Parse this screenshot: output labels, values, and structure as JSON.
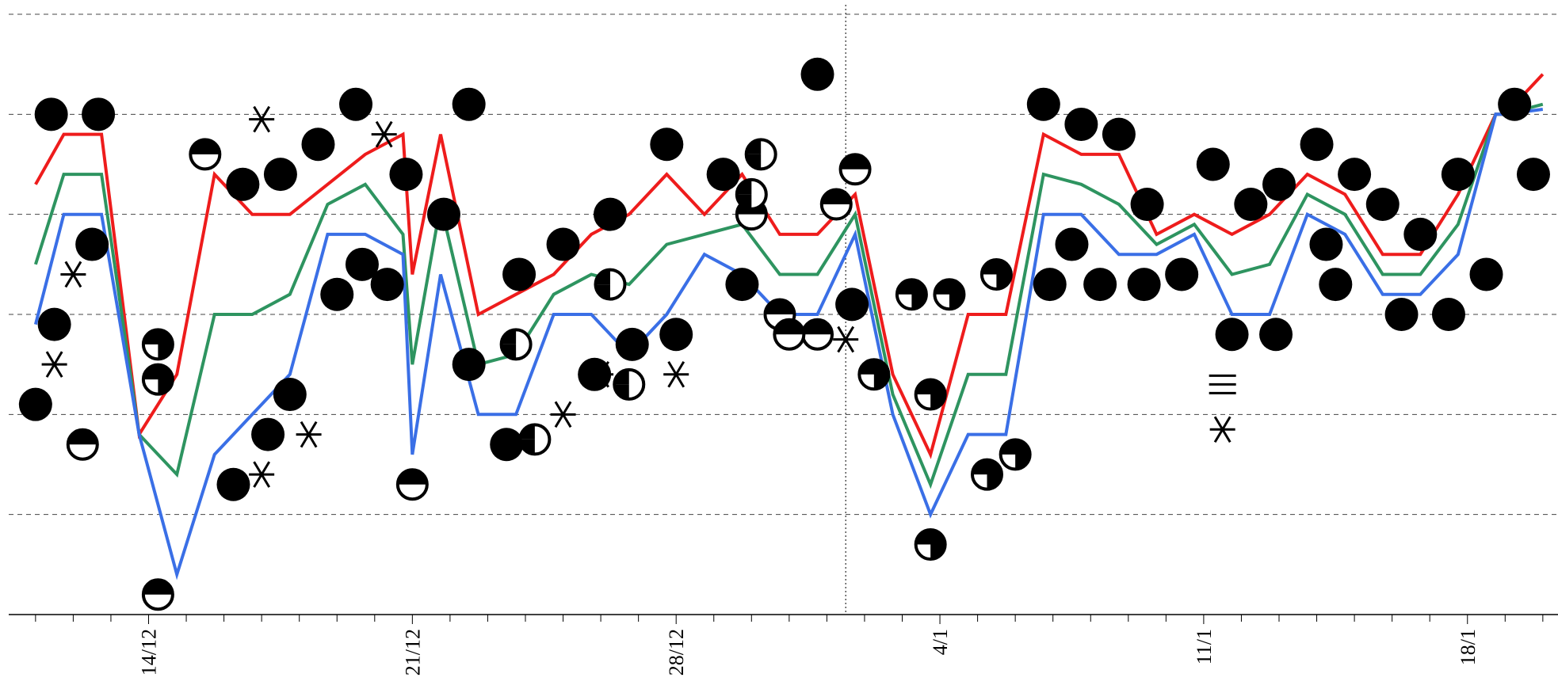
{
  "chart_data": {
    "type": "line",
    "title": "",
    "xlabel": "",
    "ylabel": "",
    "x_start": "2011-12-11",
    "x_end": "2012-01-20",
    "ylim": [
      -6,
      0
    ],
    "grid": true,
    "x_tick_labels": [
      {
        "date": "2011-12-14",
        "label": "14/12"
      },
      {
        "date": "2011-12-21",
        "label": "21/12"
      },
      {
        "date": "2011-12-28",
        "label": "28/12"
      },
      {
        "date": "2012-01-04",
        "label": "4/1"
      },
      {
        "date": "2012-01-11",
        "label": "11/1"
      },
      {
        "date": "2012-01-18",
        "label": "18/1"
      }
    ],
    "vline_date": "2012-01-01T12:00",
    "series": [
      {
        "color": "#ee1c1c",
        "points": [
          [
            "2011-12-11",
            -1.7
          ],
          [
            "2011-12-11T18:00",
            -1.2
          ],
          [
            "2011-12-12T18:00",
            -1.2
          ],
          [
            "2011-12-13T18:00",
            -4.2
          ],
          [
            "2011-12-14T18:00",
            -3.6
          ],
          [
            "2011-12-15T18:00",
            -1.6
          ],
          [
            "2011-12-16T18:00",
            -2.0
          ],
          [
            "2011-12-17T18:00",
            -2.0
          ],
          [
            "2011-12-18T18:00",
            -1.7
          ],
          [
            "2011-12-19T18:00",
            -1.4
          ],
          [
            "2011-12-20T18:00",
            -1.2
          ],
          [
            "2011-12-21",
            -2.6
          ],
          [
            "2011-12-21T18:00",
            -1.2
          ],
          [
            "2011-12-22T18:00",
            -3.0
          ],
          [
            "2011-12-23T18:00",
            -2.8
          ],
          [
            "2011-12-24T18:00",
            -2.6
          ],
          [
            "2011-12-25T18:00",
            -2.2
          ],
          [
            "2011-12-26T18:00",
            -2.0
          ],
          [
            "2011-12-27T18:00",
            -1.6
          ],
          [
            "2011-12-28T18:00",
            -2.0
          ],
          [
            "2011-12-29T18:00",
            -1.6
          ],
          [
            "2011-12-30T18:00",
            -2.2
          ],
          [
            "2011-12-31T18:00",
            -2.2
          ],
          [
            "2012-01-01T18:00",
            -1.8
          ],
          [
            "2012-01-02T18:00",
            -3.6
          ],
          [
            "2012-01-03T18:00",
            -4.4
          ],
          [
            "2012-01-04T18:00",
            -3.0
          ],
          [
            "2012-01-05T18:00",
            -3.0
          ],
          [
            "2012-01-06T18:00",
            -1.2
          ],
          [
            "2012-01-07T18:00",
            -1.4
          ],
          [
            "2012-01-08T18:00",
            -1.4
          ],
          [
            "2012-01-09T18:00",
            -2.2
          ],
          [
            "2012-01-10T18:00",
            -2.0
          ],
          [
            "2012-01-11T18:00",
            -2.2
          ],
          [
            "2012-01-12T18:00",
            -2.0
          ],
          [
            "2012-01-13T18:00",
            -1.6
          ],
          [
            "2012-01-14T18:00",
            -1.8
          ],
          [
            "2012-01-15T18:00",
            -2.4
          ],
          [
            "2012-01-16T18:00",
            -2.4
          ],
          [
            "2012-01-17T18:00",
            -1.8
          ],
          [
            "2012-01-18T18:00",
            -1.0
          ],
          [
            "2012-01-19",
            -1.0
          ],
          [
            "2012-01-20",
            -0.6
          ]
        ]
      },
      {
        "color": "#2e9460",
        "points": [
          [
            "2011-12-11",
            -2.5
          ],
          [
            "2011-12-11T18:00",
            -1.6
          ],
          [
            "2011-12-12T18:00",
            -1.6
          ],
          [
            "2011-12-13T18:00",
            -4.2
          ],
          [
            "2011-12-14T18:00",
            -4.6
          ],
          [
            "2011-12-15T18:00",
            -3.0
          ],
          [
            "2011-12-16T18:00",
            -3.0
          ],
          [
            "2011-12-17T18:00",
            -2.8
          ],
          [
            "2011-12-18T18:00",
            -1.9
          ],
          [
            "2011-12-19T18:00",
            -1.7
          ],
          [
            "2011-12-20T18:00",
            -2.2
          ],
          [
            "2011-12-21",
            -3.5
          ],
          [
            "2011-12-21T18:00",
            -1.9
          ],
          [
            "2011-12-22T18:00",
            -3.5
          ],
          [
            "2011-12-23T18:00",
            -3.4
          ],
          [
            "2011-12-24T18:00",
            -2.8
          ],
          [
            "2011-12-25T18:00",
            -2.6
          ],
          [
            "2011-12-26T18:00",
            -2.7
          ],
          [
            "2011-12-27T18:00",
            -2.3
          ],
          [
            "2011-12-28T18:00",
            -2.2
          ],
          [
            "2011-12-29T18:00",
            -2.1
          ],
          [
            "2011-12-30T18:00",
            -2.6
          ],
          [
            "2011-12-31T18:00",
            -2.6
          ],
          [
            "2012-01-01T18:00",
            -2.0
          ],
          [
            "2012-01-02T18:00",
            -3.8
          ],
          [
            "2012-01-03T18:00",
            -4.7
          ],
          [
            "2012-01-04T18:00",
            -3.6
          ],
          [
            "2012-01-05T18:00",
            -3.6
          ],
          [
            "2012-01-06T18:00",
            -1.6
          ],
          [
            "2012-01-07T18:00",
            -1.7
          ],
          [
            "2012-01-08T18:00",
            -1.9
          ],
          [
            "2012-01-09T18:00",
            -2.3
          ],
          [
            "2012-01-10T18:00",
            -2.1
          ],
          [
            "2012-01-11T18:00",
            -2.6
          ],
          [
            "2012-01-12T18:00",
            -2.5
          ],
          [
            "2012-01-13T18:00",
            -1.8
          ],
          [
            "2012-01-14T18:00",
            -2.0
          ],
          [
            "2012-01-15T18:00",
            -2.6
          ],
          [
            "2012-01-16T18:00",
            -2.6
          ],
          [
            "2012-01-17T18:00",
            -2.1
          ],
          [
            "2012-01-18T18:00",
            -1.0
          ],
          [
            "2012-01-19",
            -1.0
          ],
          [
            "2012-01-20",
            -0.9
          ]
        ]
      },
      {
        "color": "#3a6fe6",
        "points": [
          [
            "2011-12-11",
            -3.1
          ],
          [
            "2011-12-11T18:00",
            -2.0
          ],
          [
            "2011-12-12T18:00",
            -2.0
          ],
          [
            "2011-12-13T18:00",
            -4.2
          ],
          [
            "2011-12-14T18:00",
            -5.6
          ],
          [
            "2011-12-15T18:00",
            -4.4
          ],
          [
            "2011-12-16T18:00",
            -4.0
          ],
          [
            "2011-12-17T18:00",
            -3.6
          ],
          [
            "2011-12-18T18:00",
            -2.2
          ],
          [
            "2011-12-19T18:00",
            -2.2
          ],
          [
            "2011-12-20T18:00",
            -2.4
          ],
          [
            "2011-12-21",
            -4.4
          ],
          [
            "2011-12-21T18:00",
            -2.6
          ],
          [
            "2011-12-22T18:00",
            -4.0
          ],
          [
            "2011-12-23T18:00",
            -4.0
          ],
          [
            "2011-12-24T18:00",
            -3.0
          ],
          [
            "2011-12-25T18:00",
            -3.0
          ],
          [
            "2011-12-26T18:00",
            -3.4
          ],
          [
            "2011-12-27T18:00",
            -3.0
          ],
          [
            "2011-12-28T18:00",
            -2.4
          ],
          [
            "2011-12-29T18:00",
            -2.6
          ],
          [
            "2011-12-30T18:00",
            -3.0
          ],
          [
            "2011-12-31T18:00",
            -3.0
          ],
          [
            "2012-01-01T18:00",
            -2.2
          ],
          [
            "2012-01-02T18:00",
            -4.0
          ],
          [
            "2012-01-03T18:00",
            -5.0
          ],
          [
            "2012-01-04T18:00",
            -4.2
          ],
          [
            "2012-01-05T18:00",
            -4.2
          ],
          [
            "2012-01-06T18:00",
            -2.0
          ],
          [
            "2012-01-07T18:00",
            -2.0
          ],
          [
            "2012-01-08T18:00",
            -2.4
          ],
          [
            "2012-01-09T18:00",
            -2.4
          ],
          [
            "2012-01-10T18:00",
            -2.2
          ],
          [
            "2012-01-11T18:00",
            -3.0
          ],
          [
            "2012-01-12T18:00",
            -3.0
          ],
          [
            "2012-01-13T18:00",
            -2.0
          ],
          [
            "2012-01-14T18:00",
            -2.2
          ],
          [
            "2012-01-15T18:00",
            -2.8
          ],
          [
            "2012-01-16T18:00",
            -2.8
          ],
          [
            "2012-01-17T18:00",
            -2.4
          ],
          [
            "2012-01-18T18:00",
            -1.0
          ],
          [
            "2012-01-19",
            -1.0
          ],
          [
            "2012-01-20",
            -0.95
          ]
        ]
      }
    ],
    "markers": [
      {
        "type": "full",
        "points": [
          [
            "2011-12-11T10:00",
            -1.0
          ],
          [
            "2011-12-12T16:00",
            -1.0
          ],
          [
            "2011-12-11T12:00",
            -3.1
          ],
          [
            "2011-12-12T12:00",
            -2.3
          ],
          [
            "2011-12-11",
            -3.9
          ],
          [
            "2011-12-16T06:00",
            -4.7
          ],
          [
            "2011-12-17T04:00",
            -4.2
          ],
          [
            "2011-12-17T18:00",
            -3.8
          ],
          [
            "2011-12-16T12:00",
            -1.7
          ],
          [
            "2011-12-17T12:00",
            -1.6
          ],
          [
            "2011-12-18T12:00",
            -1.3
          ],
          [
            "2011-12-19T12:00",
            -0.9
          ],
          [
            "2011-12-19",
            -2.8
          ],
          [
            "2011-12-19T16:00",
            -2.5
          ],
          [
            "2011-12-20T08:00",
            -2.7
          ],
          [
            "2011-12-20T20:00",
            -1.6
          ],
          [
            "2011-12-21T20:00",
            -2.0
          ],
          [
            "2011-12-22T12:00",
            -0.9
          ],
          [
            "2011-12-22T12:00",
            -3.5
          ],
          [
            "2011-12-23T12:00",
            -4.3
          ],
          [
            "2011-12-23T20:00",
            -2.6
          ],
          [
            "2011-12-25",
            -2.3
          ],
          [
            "2011-12-26T06:00",
            -2.0
          ],
          [
            "2011-12-25T20:00",
            -3.6
          ],
          [
            "2011-12-26T20:00",
            -3.3
          ],
          [
            "2011-12-28",
            -3.2
          ],
          [
            "2011-12-27T18:00",
            -1.3
          ],
          [
            "2011-12-29T06:00",
            -1.6
          ],
          [
            "2011-12-29T18:00",
            -2.7
          ],
          [
            "2011-12-31T18:00",
            -0.6
          ],
          [
            "2012-01-01T16:00",
            -2.9
          ],
          [
            "2012-01-06T18:00",
            -0.9
          ],
          [
            "2012-01-07T18:00",
            -1.1
          ],
          [
            "2012-01-08T18:00",
            -1.2
          ],
          [
            "2012-01-06T22:00",
            -2.7
          ],
          [
            "2012-01-07T12:00",
            -2.3
          ],
          [
            "2012-01-08T06:00",
            -2.7
          ],
          [
            "2012-01-09T12:00",
            -1.9
          ],
          [
            "2012-01-09T10:00",
            -2.7
          ],
          [
            "2012-01-10T10:00",
            -2.6
          ],
          [
            "2012-01-11T06:00",
            -1.5
          ],
          [
            "2012-01-11T18:00",
            -3.2
          ],
          [
            "2012-01-12T06:00",
            -1.9
          ],
          [
            "2012-01-13",
            -1.7
          ],
          [
            "2012-01-12T22:00",
            -3.2
          ],
          [
            "2012-01-14",
            -1.3
          ],
          [
            "2012-01-14T06:00",
            -2.3
          ],
          [
            "2012-01-14T12:00",
            -2.7
          ],
          [
            "2012-01-15",
            -1.6
          ],
          [
            "2012-01-15T18:00",
            -1.9
          ],
          [
            "2012-01-16T06:00",
            -3.0
          ],
          [
            "2012-01-16T18:00",
            -2.2
          ],
          [
            "2012-01-17T12:00",
            -3.0
          ],
          [
            "2012-01-17T18:00",
            -1.6
          ],
          [
            "2012-01-18T12:00",
            -2.6
          ],
          [
            "2012-01-19T06:00",
            -0.9
          ],
          [
            "2012-01-19T18:00",
            -1.6
          ]
        ]
      },
      {
        "type": "three-quarter",
        "points": [
          [
            "2011-12-14T06:00",
            -3.3
          ],
          [
            "2011-12-14T06:00",
            -3.65
          ],
          [
            "2012-01-03T18:00",
            -3.8
          ],
          [
            "2012-01-03T18:00",
            -5.3
          ],
          [
            "2012-01-02T06:00",
            -3.6
          ],
          [
            "2012-01-03T06:00",
            -2.8
          ],
          [
            "2012-01-04T06:00",
            -2.8
          ],
          [
            "2012-01-05T12:00",
            -2.6
          ],
          [
            "2012-01-05T06:00",
            -4.6
          ],
          [
            "2012-01-06",
            -4.4
          ]
        ]
      },
      {
        "type": "half",
        "points": [
          [
            "2011-12-12T06:00",
            -4.3
          ],
          [
            "2011-12-14T06:00",
            -5.8
          ],
          [
            "2011-12-15T12:00",
            -1.4
          ],
          [
            "2011-12-21",
            -4.7
          ],
          [
            "2011-12-30T18:00",
            -3.0
          ],
          [
            "2011-12-31T18:00",
            -3.2
          ],
          [
            "2012-01-01T18:00",
            -1.55
          ],
          [
            "2012-01-01T06:00",
            -1.9
          ],
          [
            "2011-12-30",
            -2.0
          ],
          [
            "2011-12-31",
            -3.2
          ]
        ]
      },
      {
        "type": "quarter",
        "points": [
          [
            "2011-12-23T18:00",
            -3.3
          ],
          [
            "2011-12-26T06:00",
            -2.7
          ],
          [
            "2011-12-26T18:00",
            -3.7
          ],
          [
            "2011-12-30",
            -1.8
          ],
          [
            "2011-12-30T06:00",
            -1.4
          ],
          [
            "2011-12-24T06:00",
            -4.25
          ]
        ]
      },
      {
        "type": "asterisk",
        "points": [
          [
            "2011-12-11T12:00",
            -3.5
          ],
          [
            "2011-12-12",
            -2.6
          ],
          [
            "2011-12-17",
            -1.05
          ],
          [
            "2011-12-17",
            -4.6
          ],
          [
            "2011-12-18T06:00",
            -4.2
          ],
          [
            "2011-12-20T06:00",
            -1.2
          ],
          [
            "2011-12-25",
            -4.0
          ],
          [
            "2011-12-26",
            -3.6
          ],
          [
            "2011-12-28",
            -3.6
          ],
          [
            "2012-01-01T12:00",
            -3.25
          ],
          [
            "2012-01-11T12:00",
            -4.15
          ]
        ]
      },
      {
        "type": "triple-bar",
        "points": [
          [
            "2012-01-11T12:00",
            -3.7
          ]
        ]
      }
    ]
  }
}
